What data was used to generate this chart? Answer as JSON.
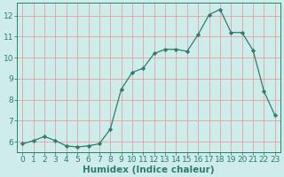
{
  "x": [
    0,
    1,
    2,
    3,
    4,
    5,
    6,
    7,
    8,
    9,
    10,
    11,
    12,
    13,
    14,
    15,
    16,
    17,
    18,
    19,
    20,
    21,
    22,
    23
  ],
  "y": [
    5.9,
    6.05,
    6.25,
    6.05,
    5.8,
    5.75,
    5.8,
    5.9,
    6.6,
    8.5,
    9.3,
    9.5,
    10.2,
    10.4,
    10.4,
    10.3,
    11.1,
    12.05,
    12.3,
    11.2,
    11.2,
    10.35,
    8.4,
    7.25
  ],
  "line_color": "#2e7d6e",
  "marker": "D",
  "marker_size": 2.2,
  "background_color": "#cdecea",
  "grid_color": "#e8a0a0",
  "xlabel": "Humidex (Indice chaleur)",
  "ylim": [
    5.5,
    12.6
  ],
  "xlim": [
    -0.5,
    23.5
  ],
  "yticks": [
    6,
    7,
    8,
    9,
    10,
    11,
    12
  ],
  "xticks": [
    0,
    1,
    2,
    3,
    4,
    5,
    6,
    7,
    8,
    9,
    10,
    11,
    12,
    13,
    14,
    15,
    16,
    17,
    18,
    19,
    20,
    21,
    22,
    23
  ],
  "tick_color": "#2e7d6e",
  "label_color": "#2e7d6e",
  "font_size": 6.5,
  "axis_label_size": 7.5,
  "linewidth": 0.9
}
